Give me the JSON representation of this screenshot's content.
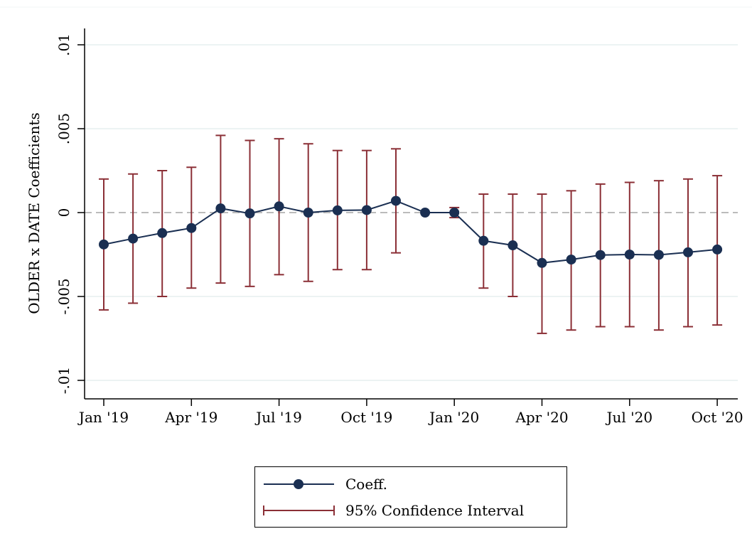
{
  "chart_data": {
    "type": "line",
    "title": "",
    "xlabel": "",
    "ylabel": "OLDER x DATE Coefficients",
    "ylim": [
      -0.011,
      0.0111
    ],
    "y_ticks": [
      {
        "value": -0.01,
        "label": "-.01"
      },
      {
        "value": -0.005,
        "label": "-.005"
      },
      {
        "value": 0,
        "label": "0"
      },
      {
        "value": 0.005,
        "label": ".005"
      },
      {
        "value": 0.01,
        "label": ".01"
      }
    ],
    "x_ticks": [
      {
        "index": 0,
        "label": "Jan '19"
      },
      {
        "index": 3,
        "label": "Apr '19"
      },
      {
        "index": 6,
        "label": "Jul '19"
      },
      {
        "index": 9,
        "label": "Oct '19"
      },
      {
        "index": 12,
        "label": "Jan '20"
      },
      {
        "index": 15,
        "label": "Apr '20"
      },
      {
        "index": 18,
        "label": "Jul '20"
      },
      {
        "index": 21,
        "label": "Oct '20"
      }
    ],
    "x": [
      "2019-01",
      "2019-02",
      "2019-03",
      "2019-04",
      "2019-05",
      "2019-06",
      "2019-07",
      "2019-08",
      "2019-09",
      "2019-10",
      "2019-11",
      "2019-12",
      "2020-01",
      "2020-02",
      "2020-03",
      "2020-04",
      "2020-05",
      "2020-06",
      "2020-07",
      "2020-08",
      "2020-09",
      "2020-10"
    ],
    "series": [
      {
        "name": "Coeff.",
        "color": "#1a2f52",
        "values": [
          -0.0019,
          -0.00155,
          -0.00122,
          -0.00092,
          0.00025,
          -5e-05,
          0.00037,
          0.0,
          0.00013,
          0.00015,
          0.0007,
          0.0,
          0.0,
          -0.00168,
          -0.00195,
          -0.003,
          -0.0028,
          -0.00253,
          -0.0025,
          -0.00252,
          -0.00237,
          -0.0022
        ]
      },
      {
        "name": "95% Confidence Interval",
        "color": "#8b2f36",
        "lower": [
          -0.0058,
          -0.0054,
          -0.005,
          -0.0045,
          -0.0042,
          -0.0044,
          -0.0037,
          -0.0041,
          -0.0034,
          -0.0034,
          -0.0024,
          0.0,
          -0.0003,
          -0.0045,
          -0.005,
          -0.0072,
          -0.007,
          -0.0068,
          -0.0068,
          -0.007,
          -0.0068,
          -0.0067
        ],
        "upper": [
          0.002,
          0.0023,
          0.0025,
          0.0027,
          0.0046,
          0.0043,
          0.0044,
          0.0041,
          0.0037,
          0.0037,
          0.0038,
          0.0,
          0.0003,
          0.0011,
          0.0011,
          0.0011,
          0.0013,
          0.0017,
          0.0018,
          0.0019,
          0.002,
          0.0022
        ]
      }
    ],
    "reference_line": {
      "y": 0,
      "style": "dashed",
      "color": "#bbbbbb"
    },
    "grid": {
      "horizontal": true,
      "color": "#e6efef"
    },
    "legend": {
      "position": "bottom-center",
      "entries": [
        "Coeff.",
        "95% Confidence Interval"
      ]
    }
  }
}
